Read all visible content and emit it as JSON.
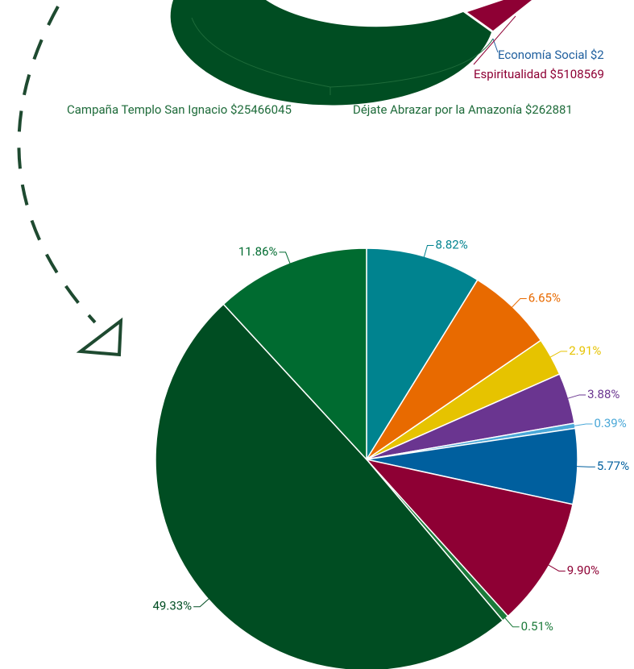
{
  "chart_data": {
    "type": "pie",
    "annotations": [
      {
        "text": "Economía Social $2",
        "color": "#1f5f9e"
      },
      {
        "text": "Espiritualidad $5108569",
        "color": "#8e0034"
      },
      {
        "text": "Campaña Templo San Ignacio $25466045",
        "color": "#1e6b3a"
      },
      {
        "text": "Déjate Abrazar por la Amazonía $262881",
        "color": "#1e6b3a"
      }
    ],
    "values": [
      8.82,
      6.65,
      2.91,
      3.88,
      0.39,
      5.77,
      9.9,
      0.51,
      49.33,
      11.86
    ],
    "value_labels": [
      "8.82%",
      "6.65%",
      "2.91%",
      "3.88%",
      "0.39%",
      "5.77%",
      "9.90%",
      "0.51%",
      "49.33%",
      "11.86%"
    ],
    "colors": [
      "#00838f",
      "#e86a00",
      "#e6c300",
      "#6a3590",
      "#4aa8d8",
      "#005f9e",
      "#8e0034",
      "#1b7a3a",
      "#004d22",
      "#006b30"
    ]
  }
}
